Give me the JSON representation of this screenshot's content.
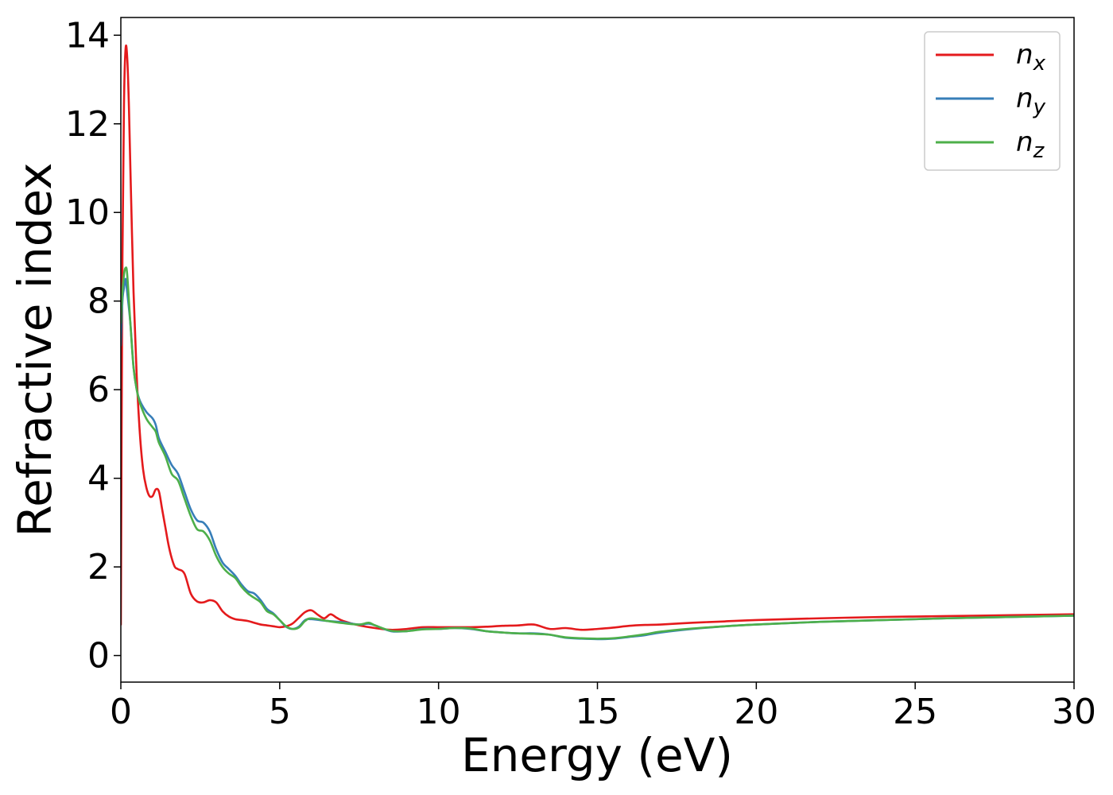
{
  "chart_data": {
    "type": "line",
    "title": "",
    "xlabel": "Energy (eV)",
    "ylabel": "Refractive index",
    "xlim": [
      0,
      30
    ],
    "ylim": [
      -0.6,
      14.4
    ],
    "xticks": [
      0,
      5,
      10,
      15,
      20,
      25,
      30
    ],
    "yticks": [
      0,
      2,
      4,
      6,
      8,
      10,
      12,
      14
    ],
    "grid": false,
    "legend_position": "top-right",
    "series": [
      {
        "name": "n_x",
        "legend_base": "n",
        "legend_sub": "x",
        "color": "#e41a1c",
        "x": [
          0,
          0.05,
          0.1,
          0.15,
          0.2,
          0.25,
          0.3,
          0.4,
          0.5,
          0.6,
          0.7,
          0.8,
          0.9,
          1.0,
          1.1,
          1.2,
          1.3,
          1.4,
          1.5,
          1.6,
          1.7,
          1.8,
          2.0,
          2.2,
          2.4,
          2.6,
          2.8,
          3.0,
          3.2,
          3.4,
          3.6,
          3.8,
          4.0,
          4.2,
          4.4,
          4.6,
          4.8,
          5.0,
          5.2,
          5.4,
          5.6,
          5.8,
          6.0,
          6.2,
          6.4,
          6.6,
          6.8,
          7.0,
          7.5,
          8.0,
          8.5,
          9.0,
          9.5,
          10.0,
          10.5,
          11.0,
          11.5,
          12.0,
          12.5,
          13.0,
          13.5,
          14.0,
          14.5,
          15.0,
          15.5,
          16.0,
          16.5,
          17.0,
          18.0,
          19.0,
          20.0,
          22.0,
          24.0,
          26.0,
          28.0,
          30.0
        ],
        "values": [
          0.7,
          9.0,
          12.5,
          13.7,
          13.5,
          12.5,
          11.0,
          8.2,
          6.3,
          5.0,
          4.2,
          3.8,
          3.6,
          3.6,
          3.75,
          3.7,
          3.3,
          2.9,
          2.5,
          2.2,
          2.0,
          1.95,
          1.85,
          1.4,
          1.22,
          1.2,
          1.25,
          1.2,
          1.0,
          0.88,
          0.82,
          0.8,
          0.78,
          0.74,
          0.7,
          0.68,
          0.66,
          0.64,
          0.66,
          0.72,
          0.85,
          0.98,
          1.02,
          0.92,
          0.84,
          0.93,
          0.85,
          0.78,
          0.68,
          0.62,
          0.58,
          0.6,
          0.64,
          0.64,
          0.64,
          0.64,
          0.65,
          0.67,
          0.68,
          0.7,
          0.6,
          0.62,
          0.58,
          0.6,
          0.63,
          0.67,
          0.69,
          0.7,
          0.74,
          0.77,
          0.8,
          0.84,
          0.87,
          0.89,
          0.91,
          0.93
        ]
      },
      {
        "name": "n_y",
        "legend_base": "n",
        "legend_sub": "y",
        "color": "#377eb8",
        "x": [
          0,
          0.05,
          0.1,
          0.15,
          0.2,
          0.3,
          0.4,
          0.5,
          0.6,
          0.8,
          1.0,
          1.1,
          1.2,
          1.4,
          1.6,
          1.8,
          2.0,
          2.2,
          2.4,
          2.6,
          2.8,
          3.0,
          3.2,
          3.4,
          3.6,
          3.8,
          4.0,
          4.2,
          4.4,
          4.6,
          4.8,
          5.0,
          5.2,
          5.4,
          5.6,
          5.8,
          6.0,
          6.5,
          7.0,
          7.5,
          7.8,
          8.0,
          8.5,
          9.0,
          9.5,
          10.0,
          10.5,
          11.0,
          11.5,
          12.0,
          12.5,
          13.0,
          13.5,
          14.0,
          14.5,
          15.0,
          15.5,
          16.0,
          16.5,
          17.0,
          18.0,
          19.0,
          20.0,
          22.0,
          24.0,
          26.0,
          28.0,
          30.0
        ],
        "values": [
          7.0,
          8.0,
          8.3,
          8.5,
          8.2,
          7.5,
          6.5,
          6.0,
          5.75,
          5.5,
          5.35,
          5.2,
          4.9,
          4.6,
          4.3,
          4.1,
          3.7,
          3.3,
          3.05,
          3.0,
          2.8,
          2.4,
          2.1,
          1.95,
          1.8,
          1.6,
          1.45,
          1.4,
          1.25,
          1.05,
          0.95,
          0.8,
          0.65,
          0.6,
          0.65,
          0.8,
          0.82,
          0.78,
          0.75,
          0.7,
          0.72,
          0.68,
          0.55,
          0.55,
          0.6,
          0.6,
          0.62,
          0.6,
          0.55,
          0.52,
          0.5,
          0.5,
          0.47,
          0.4,
          0.38,
          0.37,
          0.38,
          0.42,
          0.46,
          0.52,
          0.6,
          0.66,
          0.7,
          0.76,
          0.8,
          0.84,
          0.87,
          0.9
        ]
      },
      {
        "name": "n_z",
        "legend_base": "n",
        "legend_sub": "z",
        "color": "#4daf4a",
        "x": [
          0,
          0.05,
          0.1,
          0.15,
          0.2,
          0.3,
          0.4,
          0.5,
          0.6,
          0.8,
          1.0,
          1.1,
          1.2,
          1.4,
          1.6,
          1.8,
          2.0,
          2.2,
          2.4,
          2.6,
          2.8,
          3.0,
          3.2,
          3.4,
          3.6,
          3.8,
          4.0,
          4.2,
          4.4,
          4.6,
          4.8,
          5.0,
          5.2,
          5.4,
          5.6,
          5.8,
          6.0,
          6.5,
          7.0,
          7.5,
          7.8,
          8.0,
          8.5,
          9.0,
          9.5,
          10.0,
          10.5,
          11.0,
          11.5,
          12.0,
          12.5,
          13.0,
          13.5,
          14.0,
          14.5,
          15.0,
          15.5,
          16.0,
          16.5,
          17.0,
          18.0,
          19.0,
          20.0,
          22.0,
          24.0,
          26.0,
          28.0,
          30.0
        ],
        "values": [
          7.5,
          8.2,
          8.6,
          8.75,
          8.6,
          7.5,
          6.5,
          6.0,
          5.7,
          5.35,
          5.15,
          5.05,
          4.8,
          4.5,
          4.1,
          3.95,
          3.55,
          3.15,
          2.85,
          2.8,
          2.6,
          2.25,
          2.0,
          1.85,
          1.75,
          1.55,
          1.4,
          1.3,
          1.2,
          1.0,
          0.93,
          0.8,
          0.66,
          0.6,
          0.63,
          0.78,
          0.84,
          0.78,
          0.73,
          0.7,
          0.74,
          0.68,
          0.56,
          0.55,
          0.59,
          0.6,
          0.62,
          0.61,
          0.55,
          0.52,
          0.5,
          0.49,
          0.47,
          0.41,
          0.39,
          0.38,
          0.39,
          0.43,
          0.48,
          0.54,
          0.61,
          0.66,
          0.7,
          0.76,
          0.8,
          0.84,
          0.87,
          0.9
        ]
      }
    ]
  }
}
